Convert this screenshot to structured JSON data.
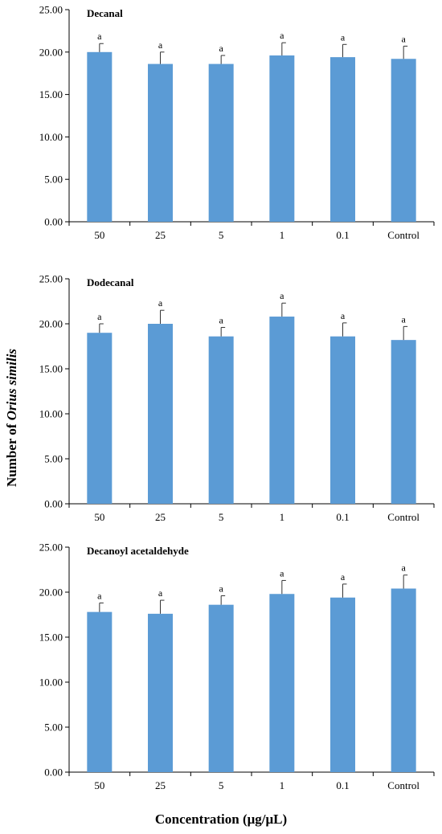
{
  "y_axis_label": {
    "prefix": "Number of ",
    "species": "Orius similis"
  },
  "x_axis_label": "Concentration (μg/μL)",
  "colors": {
    "bar": "#5b9bd5",
    "axis": "#000000"
  },
  "chart_data": [
    {
      "type": "bar",
      "title": "Decanal",
      "categories": [
        "50",
        "25",
        "5",
        "1",
        "0.1",
        "Control"
      ],
      "values": [
        20.0,
        18.6,
        18.6,
        19.6,
        19.4,
        19.2
      ],
      "errors": [
        1.0,
        1.4,
        1.0,
        1.5,
        1.5,
        1.5
      ],
      "significance": [
        "a",
        "a",
        "a",
        "a",
        "a",
        "a"
      ],
      "ylim": [
        0,
        25
      ],
      "yticks": [
        "0.00",
        "5.00",
        "10.00",
        "15.00",
        "20.00",
        "25.00"
      ]
    },
    {
      "type": "bar",
      "title": "Dodecanal",
      "categories": [
        "50",
        "25",
        "5",
        "1",
        "0.1",
        "Control"
      ],
      "values": [
        19.0,
        20.0,
        18.6,
        20.8,
        18.6,
        18.2
      ],
      "errors": [
        1.0,
        1.5,
        1.0,
        1.5,
        1.5,
        1.5
      ],
      "significance": [
        "a",
        "a",
        "a",
        "a",
        "a",
        "a"
      ],
      "ylim": [
        0,
        25
      ],
      "yticks": [
        "0.00",
        "5.00",
        "10.00",
        "15.00",
        "20.00",
        "25.00"
      ]
    },
    {
      "type": "bar",
      "title": "Decanoyl acetaldehyde",
      "categories": [
        "50",
        "25",
        "5",
        "1",
        "0.1",
        "Control"
      ],
      "values": [
        17.8,
        17.6,
        18.6,
        19.8,
        19.4,
        20.4
      ],
      "errors": [
        1.0,
        1.5,
        1.0,
        1.5,
        1.5,
        1.5
      ],
      "significance": [
        "a",
        "a",
        "a",
        "a",
        "a",
        "a"
      ],
      "ylim": [
        0,
        25
      ],
      "yticks": [
        "0.00",
        "5.00",
        "10.00",
        "15.00",
        "20.00",
        "25.00"
      ]
    }
  ]
}
